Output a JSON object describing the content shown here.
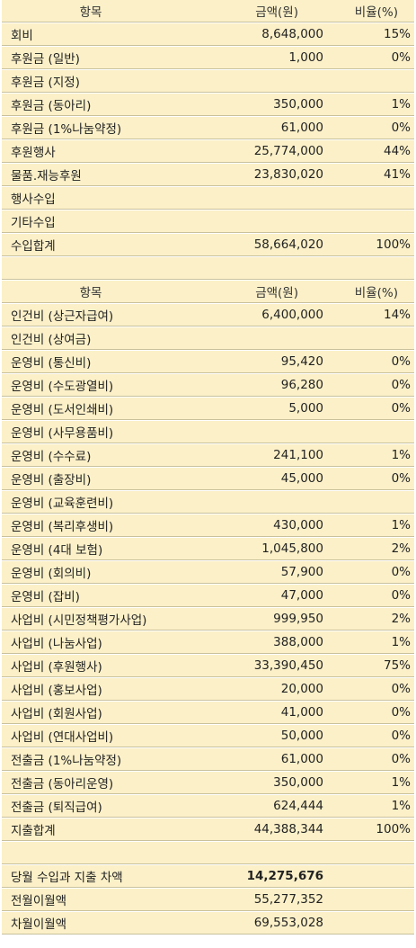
{
  "income": {
    "header": {
      "item": "항목",
      "amount": "금액(원)",
      "ratio": "비율(%)"
    },
    "rows": [
      {
        "item": "회비",
        "amount": "8,648,000",
        "ratio": "15%"
      },
      {
        "item": "후원금 (일반)",
        "amount": "1,000",
        "ratio": "0%"
      },
      {
        "item": "후원금 (지정)",
        "amount": "",
        "ratio": ""
      },
      {
        "item": "후원금 (동아리)",
        "amount": "350,000",
        "ratio": "1%"
      },
      {
        "item": "후원금 (1%나눔약정)",
        "amount": "61,000",
        "ratio": "0%"
      },
      {
        "item": "후원행사",
        "amount": "25,774,000",
        "ratio": "44%"
      },
      {
        "item": "물품.재능후원",
        "amount": "23,830,020",
        "ratio": "41%"
      },
      {
        "item": "행사수입",
        "amount": "",
        "ratio": ""
      },
      {
        "item": "기타수입",
        "amount": "",
        "ratio": ""
      },
      {
        "item": "수입합계",
        "amount": "58,664,020",
        "ratio": "100%"
      }
    ]
  },
  "expense": {
    "header": {
      "item": "항목",
      "amount": "금액(원)",
      "ratio": "비율(%)"
    },
    "rows": [
      {
        "item": "인건비 (상근자급여)",
        "amount": "6,400,000",
        "ratio": "14%"
      },
      {
        "item": "인건비 (상여금)",
        "amount": "",
        "ratio": ""
      },
      {
        "item": "운영비 (통신비)",
        "amount": "95,420",
        "ratio": "0%"
      },
      {
        "item": "운영비 (수도광열비)",
        "amount": "96,280",
        "ratio": "0%"
      },
      {
        "item": "운영비 (도서인쇄비)",
        "amount": "5,000",
        "ratio": "0%"
      },
      {
        "item": "운영비 (사무용품비)",
        "amount": "",
        "ratio": ""
      },
      {
        "item": "운영비 (수수료)",
        "amount": "241,100",
        "ratio": "1%"
      },
      {
        "item": "운영비 (출장비)",
        "amount": "45,000",
        "ratio": "0%"
      },
      {
        "item": "운영비 (교육훈련비)",
        "amount": "",
        "ratio": ""
      },
      {
        "item": "운영비 (복리후생비)",
        "amount": "430,000",
        "ratio": "1%"
      },
      {
        "item": "운영비 (4대 보험)",
        "amount": "1,045,800",
        "ratio": "2%"
      },
      {
        "item": "운영비 (회의비)",
        "amount": "57,900",
        "ratio": "0%"
      },
      {
        "item": "운영비 (잡비)",
        "amount": "47,000",
        "ratio": "0%"
      },
      {
        "item": "사업비 (시민정책평가사업)",
        "amount": "999,950",
        "ratio": "2%"
      },
      {
        "item": "사업비 (나눔사업)",
        "amount": "388,000",
        "ratio": "1%"
      },
      {
        "item": "사업비 (후원행사)",
        "amount": "33,390,450",
        "ratio": "75%"
      },
      {
        "item": "사업비 (홍보사업)",
        "amount": "20,000",
        "ratio": "0%"
      },
      {
        "item": "사업비 (회원사업)",
        "amount": "41,000",
        "ratio": "0%"
      },
      {
        "item": "사업비 (연대사업비)",
        "amount": "50,000",
        "ratio": "0%"
      },
      {
        "item": "전출금 (1%나눔약정)",
        "amount": "61,000",
        "ratio": "0%"
      },
      {
        "item": "전출금 (동아리운영)",
        "amount": "350,000",
        "ratio": "1%"
      },
      {
        "item": "전출금 (퇴직급여)",
        "amount": "624,444",
        "ratio": "1%"
      },
      {
        "item": "지출합계",
        "amount": "44,388,344",
        "ratio": "100%"
      }
    ]
  },
  "summary": {
    "rows": [
      {
        "item": "당월 수입과 지출 차액",
        "amount": "14,275,676",
        "ratio": ""
      },
      {
        "item": "전월이월액",
        "amount": "55,277,352",
        "ratio": ""
      },
      {
        "item": "차월이월액",
        "amount": "69,553,028",
        "ratio": ""
      }
    ]
  }
}
